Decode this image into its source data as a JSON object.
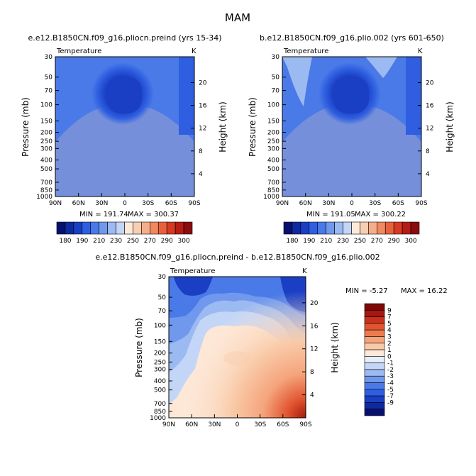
{
  "figure": {
    "title": "MAM"
  },
  "colors": {
    "abs_levels": [
      "#08106e",
      "#0d2aa0",
      "#1a3fc4",
      "#2f5fe0",
      "#4a7ae8",
      "#7099ee",
      "#9cbaf2",
      "#c4d6f7",
      "#fce9d9",
      "#f8cfb3",
      "#f5ae8a",
      "#f08860",
      "#e8613d",
      "#d63a22",
      "#b51c14",
      "#8a0c0c"
    ],
    "diff_levels": [
      "#08106e",
      "#0d2aa0",
      "#1a3fc4",
      "#2f5fe0",
      "#4a7ae8",
      "#7099ee",
      "#9cbaf2",
      "#c4d6f7",
      "#e6eefc",
      "#fde7d6",
      "#f9caa8",
      "#f5a47c",
      "#ee7b4f",
      "#e0542f",
      "#c8321b",
      "#a5170f",
      "#7d0808"
    ]
  },
  "chart_data": [
    {
      "type": "heatmap",
      "title": "e.e12.B1850CN.f09_g16.pliocn.preind (yrs 15-34)",
      "variable": "Temperature",
      "units": "K",
      "xlabel": "",
      "ylabel": "Pressure (mb)",
      "y2label": "Height (km)",
      "x_ticks": [
        "90N",
        "60N",
        "30N",
        "0",
        "30S",
        "60S",
        "90S"
      ],
      "x_range": [
        90,
        -90
      ],
      "y_ticks": [
        30,
        50,
        70,
        100,
        150,
        200,
        250,
        300,
        400,
        500,
        700,
        850,
        1000
      ],
      "y_range": [
        30,
        1000
      ],
      "height_ticks": [
        20,
        16,
        12,
        8,
        4
      ],
      "min_label": "MIN = 191.74",
      "max_label": "MAX = 300.37",
      "min": 191.74,
      "max": 300.37,
      "colorbar_labels": [
        "180",
        "190",
        "210",
        "230",
        "250",
        "270",
        "290",
        "300"
      ],
      "colorbar_orientation": "horizontal"
    },
    {
      "type": "heatmap",
      "title": "b.e12.B1850CN.f09_g16.plio.002 (yrs 601-650)",
      "variable": "Temperature",
      "units": "K",
      "xlabel": "",
      "ylabel": "Pressure (mb)",
      "y2label": "Height (km)",
      "x_ticks": [
        "90N",
        "60N",
        "30N",
        "0",
        "30S",
        "60S",
        "90S"
      ],
      "x_range": [
        90,
        -90
      ],
      "y_ticks": [
        30,
        50,
        70,
        100,
        150,
        200,
        250,
        300,
        400,
        500,
        700,
        850,
        1000
      ],
      "y_range": [
        30,
        1000
      ],
      "height_ticks": [
        20,
        16,
        12,
        8,
        4
      ],
      "min_label": "MIN = 191.05",
      "max_label": "MAX = 300.22",
      "min": 191.05,
      "max": 300.22,
      "colorbar_labels": [
        "180",
        "190",
        "210",
        "230",
        "250",
        "270",
        "290",
        "300"
      ],
      "colorbar_orientation": "horizontal"
    },
    {
      "type": "heatmap",
      "title": "e.e12.B1850CN.f09_g16.pliocn.preind - b.e12.B1850CN.f09_g16.plio.002",
      "variable": "Temperature",
      "units": "K",
      "xlabel": "",
      "ylabel": "Pressure (mb)",
      "y2label": "Height (km)",
      "x_ticks": [
        "90N",
        "60N",
        "30N",
        "0",
        "30S",
        "60S",
        "90S"
      ],
      "x_range": [
        90,
        -90
      ],
      "y_ticks": [
        30,
        50,
        70,
        100,
        150,
        200,
        250,
        300,
        400,
        500,
        700,
        850,
        1000
      ],
      "y_range": [
        30,
        1000
      ],
      "height_ticks": [
        20,
        16,
        12,
        8,
        4
      ],
      "min_label": "MIN = -5.27",
      "max_label": "MAX = 16.22",
      "min": -5.27,
      "max": 16.22,
      "colorbar_labels": [
        "9",
        "7",
        "5",
        "4",
        "3",
        "2",
        "1",
        "0",
        "-1",
        "-2",
        "-3",
        "-4",
        "-5",
        "-7",
        "-9"
      ],
      "colorbar_orientation": "vertical"
    }
  ]
}
